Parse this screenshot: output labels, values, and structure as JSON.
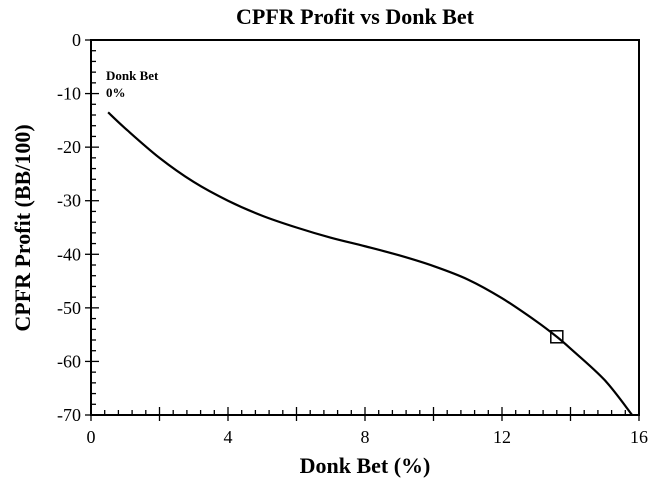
{
  "chart_data": {
    "type": "line",
    "title": "CPFR Profit vs Donk Bet",
    "xlabel": "Donk Bet (%)",
    "ylabel": "CPFR Profit (BB/100)",
    "xlim": [
      0,
      16
    ],
    "ylim": [
      -70,
      0
    ],
    "xticks": [
      0,
      4,
      8,
      12,
      16
    ],
    "yticks": [
      0,
      -10,
      -20,
      -30,
      -40,
      -50,
      -60,
      -70
    ],
    "xtick_labels": [
      "0",
      "4",
      "8",
      "12",
      "16"
    ],
    "ytick_labels": [
      "0",
      "-10",
      "-20",
      "-30",
      "-40",
      "-50",
      "-60",
      "-70"
    ],
    "grid": false,
    "series": [
      {
        "name": "CPFR Profit",
        "x": [
          0.5,
          1,
          2,
          3,
          4,
          5,
          6,
          7,
          8,
          9,
          10,
          11,
          12,
          13,
          13.6,
          14,
          15,
          15.8
        ],
        "y": [
          -13.5,
          -16.5,
          -22,
          -26.5,
          -30,
          -32.8,
          -35,
          -36.9,
          -38.5,
          -40.2,
          -42.2,
          -44.7,
          -48.2,
          -52.5,
          -55.4,
          -57.6,
          -63.5,
          -70
        ]
      }
    ],
    "marker": {
      "x": 13.6,
      "y": -55.4,
      "shape": "square"
    },
    "annotations": [
      {
        "line1": "Donk Bet",
        "line2": "0%"
      }
    ]
  }
}
